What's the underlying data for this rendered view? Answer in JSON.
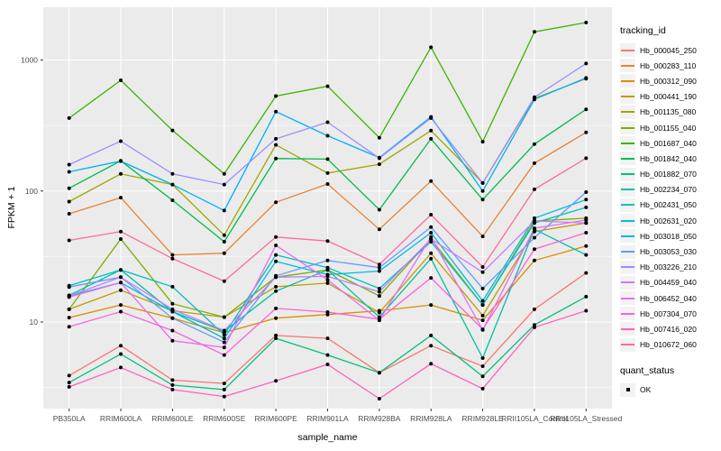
{
  "chart_data": {
    "type": "line",
    "title": "",
    "xlabel": "sample_name",
    "ylabel": "FPKM + 1",
    "y_scale": "log10",
    "y_ticks": [
      10,
      100,
      1000
    ],
    "y_minor_gridlines": [
      3.1623,
      31.623,
      316.23
    ],
    "ylim": [
      2.2,
      2600
    ],
    "grid": "white major+minor gridlines on gray panel",
    "legend_position": "right",
    "panel_color": "#EBEBEB",
    "gridline_color": "#FFFFFF",
    "tick_label_color": "#4D4D4D",
    "point_color": "#000000",
    "categories": [
      "PB350LA",
      "RRIM600LA",
      "RRIM600LE",
      "RRIM600SE",
      "RRIM600PE",
      "RRIM901LA",
      "RRIM928BA",
      "RRIM928LA",
      "RRIM928LE",
      "RRII105LA_Control",
      "RRII105LA_Stressed"
    ],
    "series": [
      {
        "name": "Hb_000045_250",
        "color": "#F8766D",
        "values": [
          3.9,
          6.6,
          3.6,
          3.4,
          7.9,
          7.5,
          4.1,
          6.6,
          4.6,
          12.5,
          23.7
        ]
      },
      {
        "name": "Hb_000283_110",
        "color": "#EA8331",
        "values": [
          67,
          89,
          32.5,
          33.5,
          82,
          113,
          51,
          119,
          45,
          163,
          280
        ]
      },
      {
        "name": "Hb_000312_090",
        "color": "#D89000",
        "values": [
          10.8,
          13.5,
          10.7,
          8.3,
          10.7,
          11.4,
          12.2,
          13.5,
          10.3,
          29.5,
          38
        ]
      },
      {
        "name": "Hb_000441_190",
        "color": "#C09B00",
        "values": [
          12.5,
          17.5,
          12.2,
          10.9,
          18.6,
          19.8,
          11.8,
          33.5,
          11.2,
          49,
          57
        ]
      },
      {
        "name": "Hb_001135_080",
        "color": "#A3A500",
        "values": [
          83,
          135,
          112,
          46,
          225,
          137,
          160,
          289,
          115,
          510,
          720
        ]
      },
      {
        "name": "Hb_001155_040",
        "color": "#7CAE00",
        "values": [
          12.5,
          43,
          13.8,
          10.9,
          22,
          25,
          15.8,
          43,
          13.5,
          59,
          62
        ]
      },
      {
        "name": "Hb_001687_040",
        "color": "#39B600",
        "values": [
          360,
          700,
          290,
          135,
          530,
          630,
          255,
          1250,
          238,
          1640,
          1930
        ]
      },
      {
        "name": "Hb_001842_040",
        "color": "#00BB4E",
        "values": [
          105,
          170,
          85,
          41,
          177,
          175,
          72,
          250,
          86,
          228,
          420
        ]
      },
      {
        "name": "Hb_001882_070",
        "color": "#00BF7D",
        "values": [
          3.45,
          5.7,
          3.3,
          3.05,
          7.5,
          5.6,
          4.1,
          7.9,
          3.85,
          9.5,
          15.6
        ]
      },
      {
        "name": "Hb_002234_070",
        "color": "#00C1A3",
        "values": [
          16,
          25,
          12,
          8.5,
          17.2,
          25,
          10.9,
          30.5,
          5.3,
          51,
          32.5
        ]
      },
      {
        "name": "Hb_002431_050",
        "color": "#00BFC4",
        "values": [
          18.9,
          25,
          18.6,
          8.0,
          32.5,
          26,
          18,
          41,
          13.5,
          57,
          75
        ]
      },
      {
        "name": "Hb_002631_020",
        "color": "#00BAE0",
        "values": [
          15.8,
          20,
          12,
          7.5,
          29,
          23,
          24.5,
          48,
          14.5,
          62,
          86
        ]
      },
      {
        "name": "Hb_003018_050",
        "color": "#00B0F6",
        "values": [
          140,
          169,
          112,
          71,
          404,
          264,
          180,
          368,
          100,
          500,
          730
        ]
      },
      {
        "name": "Hb_003053_030",
        "color": "#619CFF",
        "values": [
          18.5,
          22,
          10.7,
          7.0,
          22.5,
          29.5,
          26,
          53,
          18,
          44,
          98
        ]
      },
      {
        "name": "Hb_003226_210",
        "color": "#9590FF",
        "values": [
          159,
          240,
          135,
          112,
          250,
          335,
          178,
          360,
          115,
          520,
          940
        ]
      },
      {
        "name": "Hb_004459_040",
        "color": "#C77CFF",
        "values": [
          15.8,
          22,
          12.5,
          8.6,
          22,
          22.3,
          17,
          43,
          24,
          59,
          57
        ]
      },
      {
        "name": "Hb_006452_040",
        "color": "#E76BF3",
        "values": [
          15.5,
          20,
          7.2,
          6.4,
          38.5,
          21,
          10.3,
          44.5,
          8.7,
          52,
          60
        ]
      },
      {
        "name": "Hb_007304_070",
        "color": "#FA62DB",
        "values": [
          9.2,
          12,
          8.6,
          5.6,
          12.7,
          11.9,
          10.5,
          21.7,
          8.8,
          36,
          48
        ]
      },
      {
        "name": "Hb_007416_020",
        "color": "#FF62BC",
        "values": [
          3.2,
          4.5,
          3.05,
          2.7,
          3.55,
          4.75,
          2.6,
          4.8,
          3.1,
          9.1,
          12.2
        ]
      },
      {
        "name": "Hb_010672_060",
        "color": "#FF6A98",
        "values": [
          42,
          49,
          30.5,
          20.5,
          44.5,
          41.5,
          27.5,
          66,
          26.3,
          103,
          178
        ]
      }
    ],
    "legend": {
      "tracking_title": "tracking_id",
      "quant_title": "quant_status",
      "quant_items": [
        {
          "label": "OK",
          "marker": "black-point"
        }
      ]
    }
  }
}
